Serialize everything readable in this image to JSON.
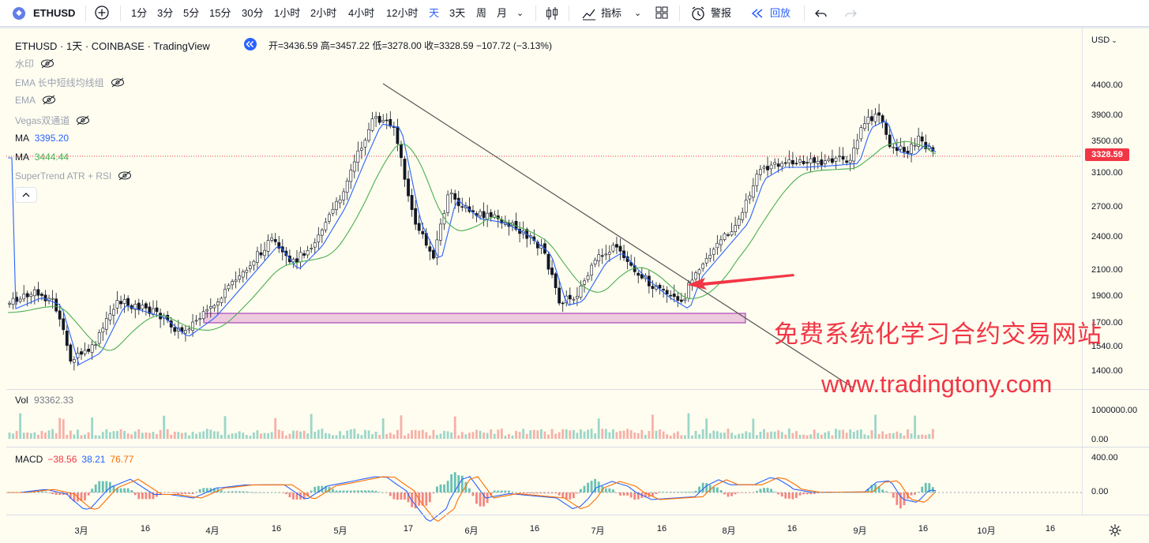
{
  "toolbar": {
    "symbol": "ETHUSD",
    "intervals": [
      "1分",
      "3分",
      "5分",
      "15分",
      "30分",
      "1小时",
      "2小时",
      "4小时",
      "12小时",
      "天",
      "3天",
      "周",
      "月"
    ],
    "active_interval": "天",
    "indicators_label": "指标",
    "alert_label": "警报",
    "replay_label": "回放"
  },
  "chart": {
    "title": "ETHUSD · 1天 · COINBASE · TradingView",
    "ohlc": "开=3436.59 高=3457.22 低=3278.00 收=3328.59 −107.72 (−3.13%)",
    "currency": "USD",
    "current_price": "3328.59",
    "indicators": {
      "watermark": "水印",
      "ema_group": "EMA 长中短线均线组",
      "ema": "EMA",
      "vegas": "Vegas双通道",
      "ma1_label": "MA",
      "ma1_value": "3395.20",
      "ma2_label": "MA",
      "ma2_value": "3444.44",
      "supertrend": "SuperTrend ATR + RSI"
    },
    "price_axis": [
      "4400.00",
      "3900.00",
      "3500.00",
      "3100.00",
      "2700.00",
      "2400.00",
      "2100.00",
      "1900.00",
      "1700.00",
      "1540.00",
      "1400.00"
    ],
    "volume": {
      "label": "Vol",
      "value": "93362.33",
      "axis": [
        "1000000.00",
        "0.00"
      ]
    },
    "macd": {
      "label": "MACD",
      "hist": "−38.56",
      "macd": "38.21",
      "signal": "76.77",
      "axis": [
        "400.00",
        "0.00"
      ]
    },
    "time_axis": [
      "3月",
      "16",
      "4月",
      "16",
      "5月",
      "17",
      "6月",
      "16",
      "7月",
      "16",
      "8月",
      "16",
      "9月",
      "16",
      "10月",
      "16"
    ],
    "colors": {
      "up": "#26a69a",
      "down": "#ef5350",
      "ma_fast": "#2962ff",
      "ma_slow": "#4caf50",
      "macd": "#2962ff",
      "signal": "#ff6d00"
    }
  },
  "overlay": {
    "watermark_cn": "免费系统化学习合约交易网站",
    "watermark_url": "www.tradingtony.com"
  }
}
